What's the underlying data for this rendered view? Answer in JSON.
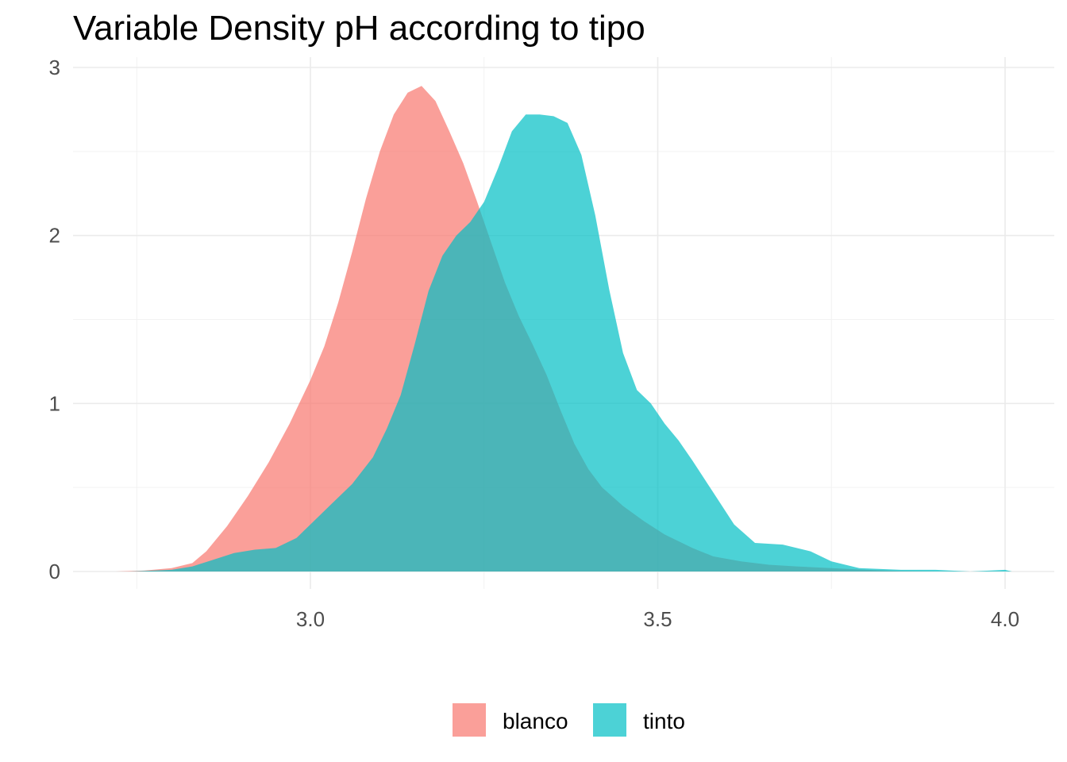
{
  "chart_data": {
    "type": "area",
    "title": "Variable Density pH according to tipo",
    "xlabel": "",
    "ylabel": "",
    "xlim": [
      2.7,
      4.05
    ],
    "ylim": [
      0,
      3
    ],
    "x_ticks": [
      "3.0",
      "3.5",
      "4.0"
    ],
    "y_ticks": [
      "0",
      "1",
      "2",
      "3"
    ],
    "grid": true,
    "legend_position": "bottom",
    "series": [
      {
        "name": "blanco",
        "color": "#F8766D",
        "points": [
          [
            2.72,
            0.0
          ],
          [
            2.76,
            0.005
          ],
          [
            2.8,
            0.02
          ],
          [
            2.83,
            0.05
          ],
          [
            2.85,
            0.12
          ],
          [
            2.88,
            0.27
          ],
          [
            2.91,
            0.45
          ],
          [
            2.94,
            0.65
          ],
          [
            2.97,
            0.88
          ],
          [
            3.0,
            1.14
          ],
          [
            3.02,
            1.34
          ],
          [
            3.04,
            1.6
          ],
          [
            3.06,
            1.9
          ],
          [
            3.08,
            2.22
          ],
          [
            3.1,
            2.5
          ],
          [
            3.12,
            2.72
          ],
          [
            3.14,
            2.85
          ],
          [
            3.16,
            2.89
          ],
          [
            3.18,
            2.8
          ],
          [
            3.2,
            2.62
          ],
          [
            3.22,
            2.43
          ],
          [
            3.24,
            2.2
          ],
          [
            3.26,
            1.96
          ],
          [
            3.28,
            1.72
          ],
          [
            3.3,
            1.52
          ],
          [
            3.32,
            1.35
          ],
          [
            3.34,
            1.17
          ],
          [
            3.36,
            0.96
          ],
          [
            3.38,
            0.76
          ],
          [
            3.4,
            0.61
          ],
          [
            3.42,
            0.5
          ],
          [
            3.45,
            0.39
          ],
          [
            3.48,
            0.3
          ],
          [
            3.51,
            0.22
          ],
          [
            3.55,
            0.14
          ],
          [
            3.58,
            0.09
          ],
          [
            3.62,
            0.06
          ],
          [
            3.66,
            0.04
          ],
          [
            3.7,
            0.03
          ],
          [
            3.75,
            0.02
          ],
          [
            3.8,
            0.01
          ],
          [
            3.85,
            0.003
          ],
          [
            3.9,
            0.0
          ]
        ]
      },
      {
        "name": "tinto",
        "color": "#00BFC4",
        "points": [
          [
            2.74,
            0.0
          ],
          [
            2.8,
            0.01
          ],
          [
            2.83,
            0.03
          ],
          [
            2.86,
            0.07
          ],
          [
            2.89,
            0.11
          ],
          [
            2.92,
            0.13
          ],
          [
            2.95,
            0.14
          ],
          [
            2.98,
            0.2
          ],
          [
            3.0,
            0.28
          ],
          [
            3.03,
            0.4
          ],
          [
            3.06,
            0.52
          ],
          [
            3.09,
            0.68
          ],
          [
            3.11,
            0.85
          ],
          [
            3.13,
            1.05
          ],
          [
            3.15,
            1.35
          ],
          [
            3.17,
            1.67
          ],
          [
            3.19,
            1.88
          ],
          [
            3.21,
            2.0
          ],
          [
            3.23,
            2.08
          ],
          [
            3.25,
            2.2
          ],
          [
            3.27,
            2.4
          ],
          [
            3.29,
            2.62
          ],
          [
            3.31,
            2.72
          ],
          [
            3.33,
            2.72
          ],
          [
            3.35,
            2.71
          ],
          [
            3.37,
            2.67
          ],
          [
            3.39,
            2.48
          ],
          [
            3.41,
            2.12
          ],
          [
            3.43,
            1.68
          ],
          [
            3.45,
            1.3
          ],
          [
            3.47,
            1.08
          ],
          [
            3.49,
            1.0
          ],
          [
            3.51,
            0.88
          ],
          [
            3.53,
            0.78
          ],
          [
            3.55,
            0.66
          ],
          [
            3.58,
            0.47
          ],
          [
            3.61,
            0.28
          ],
          [
            3.64,
            0.17
          ],
          [
            3.68,
            0.16
          ],
          [
            3.72,
            0.12
          ],
          [
            3.75,
            0.06
          ],
          [
            3.79,
            0.02
          ],
          [
            3.85,
            0.01
          ],
          [
            3.9,
            0.01
          ],
          [
            3.95,
            0.0
          ],
          [
            4.0,
            0.01
          ],
          [
            4.01,
            0.0
          ]
        ]
      }
    ]
  }
}
